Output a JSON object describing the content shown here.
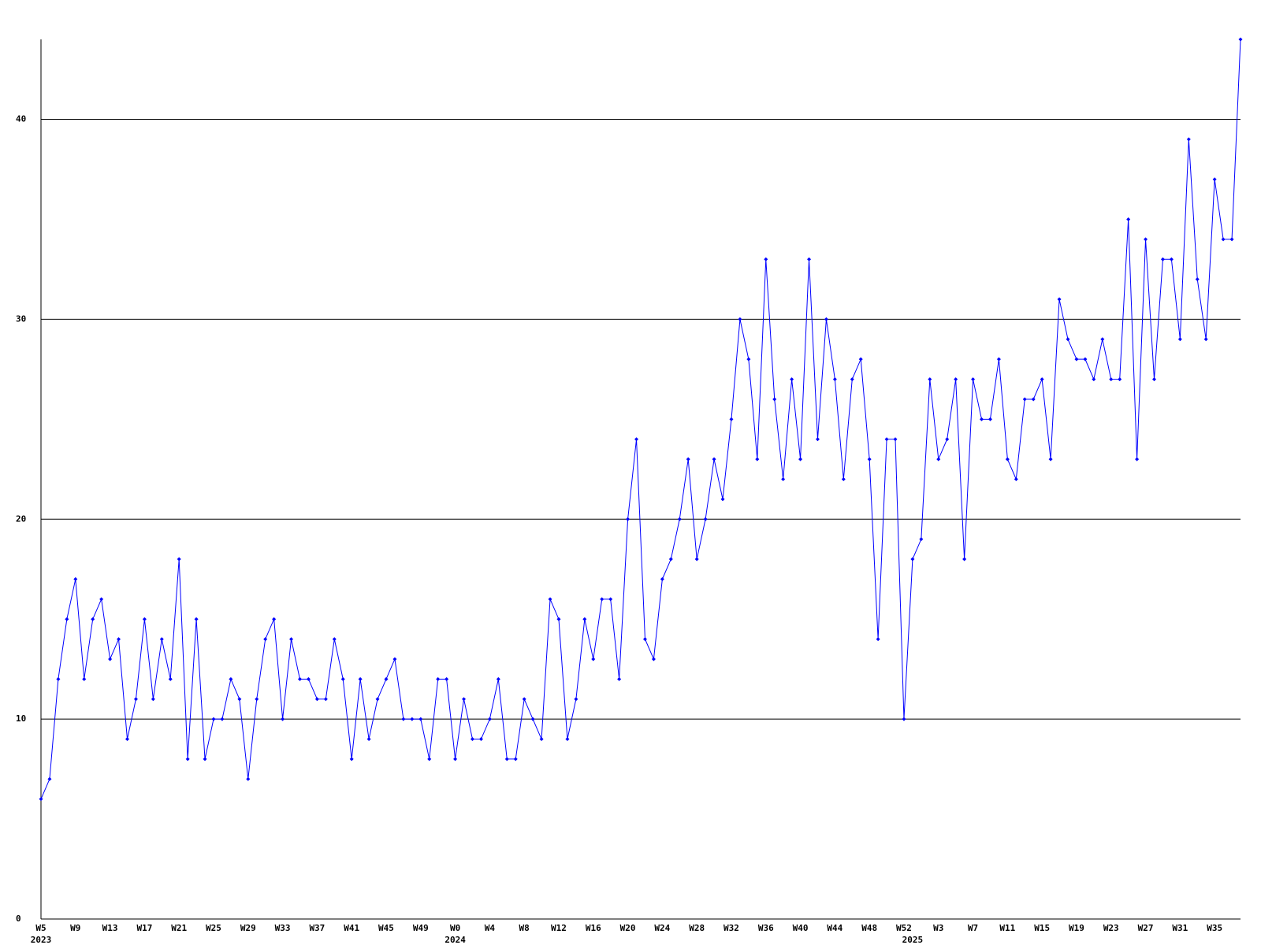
{
  "chart_data": {
    "type": "line",
    "categories": [
      "W5",
      null,
      null,
      null,
      "W9",
      null,
      null,
      null,
      "W13",
      null,
      null,
      null,
      "W17",
      null,
      null,
      null,
      "W21",
      null,
      null,
      null,
      "W25",
      null,
      null,
      null,
      "W29",
      null,
      null,
      null,
      "W33",
      null,
      null,
      null,
      "W37",
      null,
      null,
      null,
      "W41",
      null,
      null,
      null,
      "W45",
      null,
      null,
      null,
      "W49",
      null,
      null,
      null,
      "W0",
      null,
      null,
      null,
      "W4",
      null,
      null,
      null,
      "W8",
      null,
      null,
      null,
      "W12",
      null,
      null,
      null,
      "W16",
      null,
      null,
      null,
      "W20",
      null,
      null,
      null,
      "W24",
      null,
      null,
      null,
      "W28",
      null,
      null,
      null,
      "W32",
      null,
      null,
      null,
      "W36",
      null,
      null,
      null,
      "W40",
      null,
      null,
      null,
      "W44",
      null,
      null,
      null,
      "W48",
      null,
      null,
      null,
      "W52",
      null,
      null,
      null,
      "W3",
      null,
      null,
      null,
      "W7",
      null,
      null,
      null,
      "W11",
      null,
      null,
      null,
      "W15",
      null,
      null,
      null,
      "W19",
      null,
      null,
      null,
      "W23",
      null,
      null,
      null,
      "W27",
      null,
      null,
      null,
      "W31",
      null,
      null,
      null,
      "W35",
      null,
      null,
      null
    ],
    "years": [
      {
        "index": 0,
        "label": "2023"
      },
      {
        "index": 48,
        "label": "2024"
      },
      {
        "index": 101,
        "label": "2025"
      }
    ],
    "values": [
      6,
      7,
      12,
      15,
      17,
      12,
      15,
      16,
      13,
      14,
      9,
      11,
      15,
      11,
      14,
      12,
      18,
      8,
      15,
      8,
      10,
      10,
      12,
      11,
      7,
      11,
      14,
      15,
      10,
      14,
      12,
      12,
      11,
      11,
      14,
      12,
      8,
      12,
      9,
      11,
      12,
      13,
      10,
      10,
      10,
      8,
      12,
      12,
      8,
      11,
      9,
      9,
      10,
      12,
      8,
      8,
      11,
      10,
      9,
      16,
      15,
      9,
      11,
      15,
      13,
      16,
      16,
      12,
      20,
      24,
      14,
      13,
      17,
      18,
      20,
      23,
      18,
      20,
      23,
      21,
      25,
      30,
      28,
      23,
      33,
      26,
      22,
      27,
      23,
      33,
      24,
      30,
      27,
      22,
      27,
      28,
      23,
      14,
      24,
      24,
      10,
      18,
      19,
      27,
      23,
      24,
      27,
      18,
      27,
      25,
      25,
      28,
      23,
      22,
      26,
      26,
      27,
      23,
      31,
      29,
      28,
      28,
      27,
      29,
      27,
      27,
      35,
      23,
      34,
      27,
      33,
      33,
      29,
      39,
      32,
      29,
      37,
      34,
      34,
      44
    ],
    "color": "#0000ff",
    "ylim": [
      0,
      44
    ],
    "yticks": [
      0,
      10,
      20,
      30,
      40
    ],
    "grid": true
  }
}
